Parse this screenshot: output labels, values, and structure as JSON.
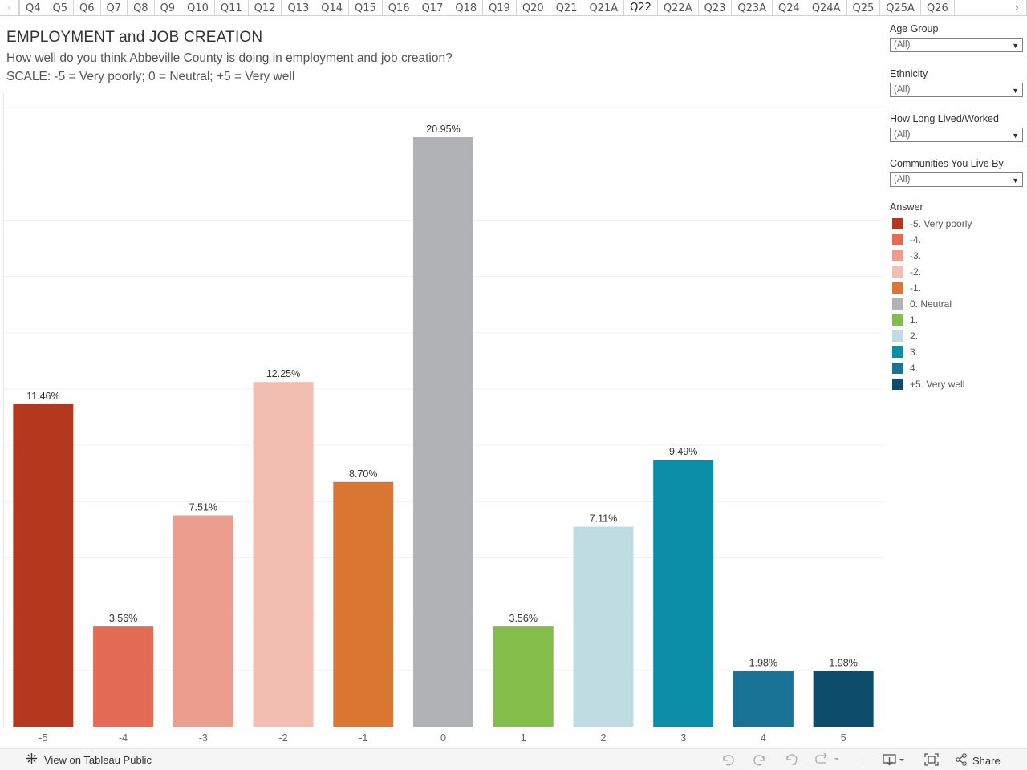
{
  "tabs": {
    "items": [
      "Q4",
      "Q5",
      "Q6",
      "Q7",
      "Q8",
      "Q9",
      "Q10",
      "Q11",
      "Q12",
      "Q13",
      "Q14",
      "Q15",
      "Q16",
      "Q17",
      "Q18",
      "Q19",
      "Q20",
      "Q21",
      "Q21A",
      "Q22",
      "Q22A",
      "Q23",
      "Q23A",
      "Q24",
      "Q24A",
      "Q25",
      "Q25A",
      "Q26"
    ],
    "active": "Q22"
  },
  "header": {
    "title": "EMPLOYMENT and JOB CREATION",
    "subtitle": "How well do you think Abbeville County is doing in employment and job creation?",
    "scale": "SCALE: -5 = Very poorly; 0 = Neutral; +5 = Very well"
  },
  "filters": [
    {
      "title": "Age Group",
      "value": "(All)"
    },
    {
      "title": "Ethnicity",
      "value": "(All)"
    },
    {
      "title": "How Long Lived/Worked",
      "value": "(All)"
    },
    {
      "title": "Communities You Live By",
      "value": "(All)"
    }
  ],
  "legend": {
    "title": "Answer",
    "items": [
      {
        "label": "-5. Very poorly",
        "color": "#B3381E"
      },
      {
        "label": "-4.",
        "color": "#E46C55"
      },
      {
        "label": "-3.",
        "color": "#EB9E8E"
      },
      {
        "label": "-2.",
        "color": "#F1BEB1"
      },
      {
        "label": "-1.",
        "color": "#DA7833"
      },
      {
        "label": "0. Neutral",
        "color": "#B1B2B5"
      },
      {
        "label": "1.",
        "color": "#83BD4A"
      },
      {
        "label": "2.",
        "color": "#C0DCE3"
      },
      {
        "label": "3.",
        "color": "#0C8EA9"
      },
      {
        "label": "4.",
        "color": "#197397"
      },
      {
        "label": "+5. Very well",
        "color": "#0D4D6B"
      }
    ]
  },
  "chart_data": {
    "type": "bar",
    "title": "EMPLOYMENT and JOB CREATION",
    "xlabel": "",
    "ylabel": "",
    "categories": [
      "-5",
      "-4",
      "-3",
      "-2",
      "-1",
      "0",
      "1",
      "2",
      "3",
      "4",
      "5"
    ],
    "values": [
      11.46,
      3.56,
      7.51,
      12.25,
      8.7,
      20.95,
      3.56,
      7.11,
      9.49,
      1.98,
      1.98
    ],
    "value_labels": [
      "11.46%",
      "3.56%",
      "7.51%",
      "12.25%",
      "8.70%",
      "20.95%",
      "3.56%",
      "7.11%",
      "9.49%",
      "1.98%",
      "1.98%"
    ],
    "colors": [
      "#B3381E",
      "#E46C55",
      "#EB9E8E",
      "#F1BEB1",
      "#DA7833",
      "#B1B2B5",
      "#83BD4A",
      "#C0DCE3",
      "#0C8EA9",
      "#197397",
      "#0D4D6B"
    ],
    "ylim": [
      0,
      22
    ],
    "grid": true
  },
  "toolbar": {
    "view_label": "View on Tableau Public",
    "share_label": "Share"
  }
}
